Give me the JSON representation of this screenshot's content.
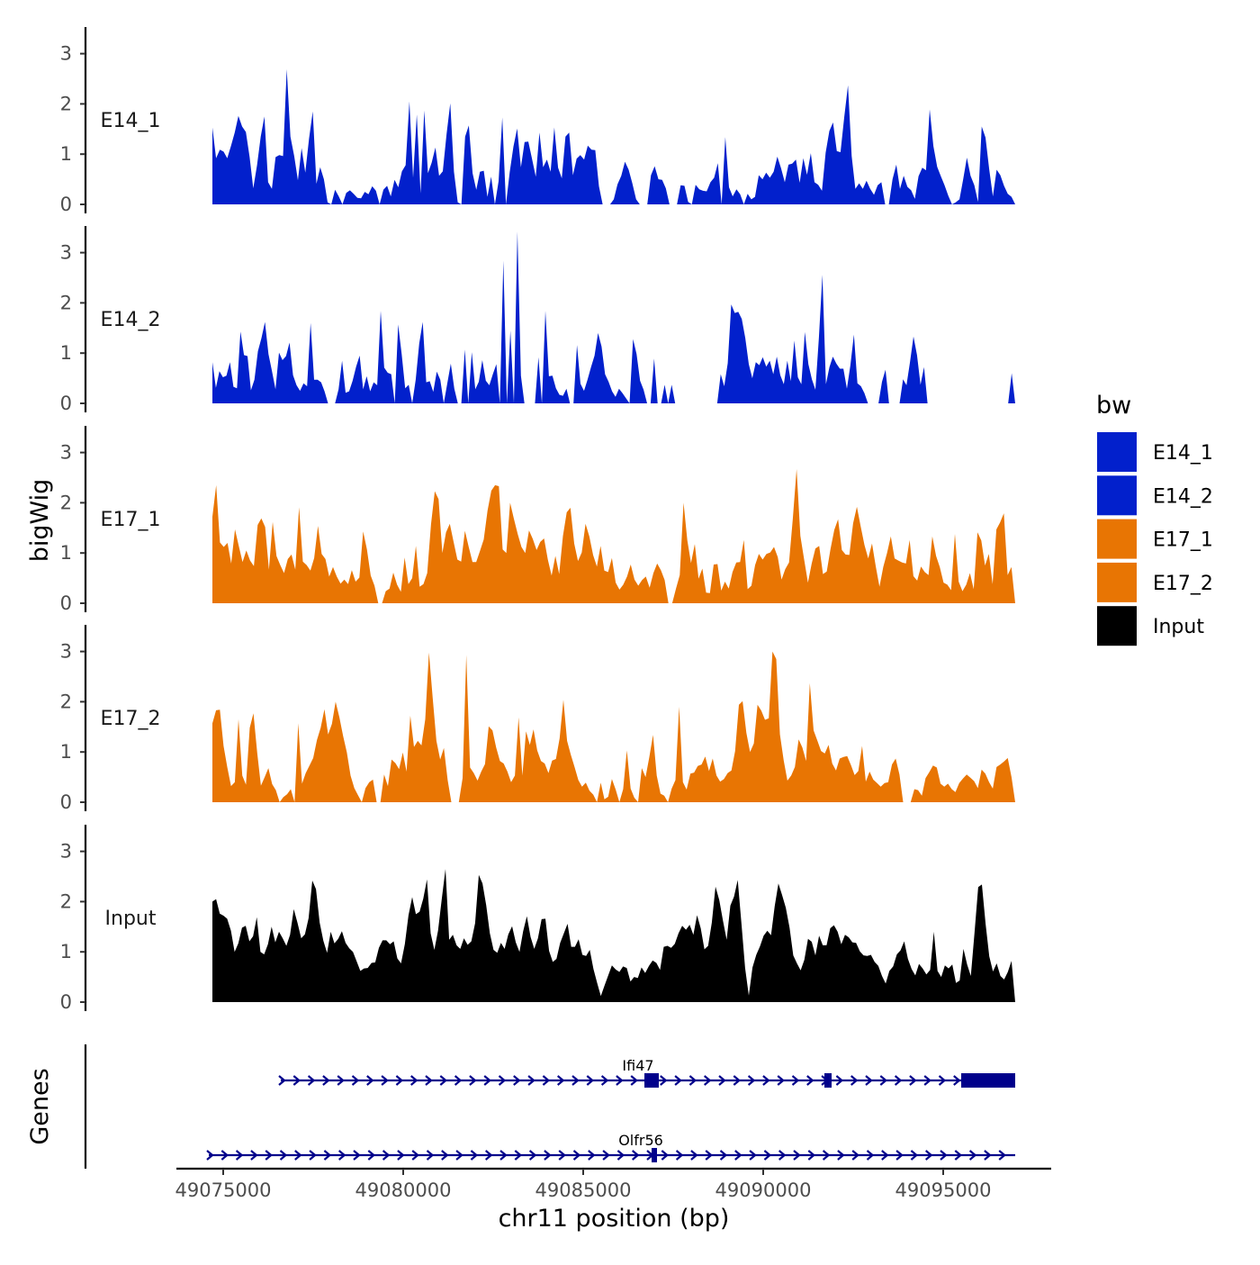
{
  "chart_data": {
    "type": "area",
    "title": "",
    "xlabel": "chr11 position (bp)",
    "ylabel": "bigWig",
    "genes_label": "Genes",
    "xlim": [
      49073700,
      49098000
    ],
    "x_ticks": [
      49075000,
      49080000,
      49085000,
      49090000,
      49095000
    ],
    "x_tick_labels": [
      "49075000",
      "49080000",
      "49085000",
      "49090000",
      "49095000"
    ],
    "ylim": [
      0,
      3.5
    ],
    "y_ticks": [
      0,
      1,
      2,
      3
    ],
    "y_tick_labels": [
      "0",
      "1",
      "2",
      "3"
    ],
    "bin_size_bp": 100,
    "series": [
      {
        "name": "E14_1",
        "color": "#0220CC",
        "x_start": 49074700,
        "x_end": 49097000,
        "values": [
          1.53,
          0.92,
          1.09,
          1.05,
          0.92,
          1.16,
          1.43,
          1.76,
          1.55,
          1.44,
          0.95,
          0.32,
          0.78,
          1.35,
          1.75,
          0.44,
          0.31,
          0.94,
          0.98,
          0.96,
          2.69,
          1.35,
          0.96,
          0.48,
          1.12,
          0.63,
          1.31,
          1.85,
          0.41,
          0.74,
          0.5,
          0.04,
          0.0,
          0.29,
          0.16,
          0.0,
          0.23,
          0.28,
          0.21,
          0.13,
          0.12,
          0.25,
          0.2,
          0.36,
          0.27,
          0.0,
          0.29,
          0.37,
          0.16,
          0.49,
          0.34,
          0.66,
          0.78,
          2.05,
          0.53,
          1.79,
          0.22,
          1.87,
          0.62,
          0.83,
          1.13,
          0.57,
          0.66,
          1.4,
          2.01,
          0.65,
          0.04,
          0.0,
          1.35,
          1.57,
          0.62,
          0.29,
          0.65,
          0.67,
          0.15,
          0.55,
          0.0,
          0.46,
          1.73,
          0.0,
          0.65,
          1.15,
          1.51,
          0.74,
          1.24,
          1.25,
          0.91,
          0.55,
          1.43,
          0.74,
          0.89,
          0.65,
          1.53,
          0.73,
          0.52,
          1.35,
          1.43,
          0.58,
          0.91,
          0.98,
          0.89,
          1.17,
          1.09,
          1.08,
          0.36,
          0.0,
          0.0,
          0.0,
          0.1,
          0.4,
          0.57,
          0.85,
          0.69,
          0.42,
          0.1,
          0.0,
          0.0,
          0.0,
          0.58,
          0.76,
          0.5,
          0.49,
          0.32,
          0.0,
          0.0,
          0.0,
          0.38,
          0.37,
          0.05,
          0.0,
          0.39,
          0.3,
          0.27,
          0.26,
          0.44,
          0.53,
          0.82,
          0.0,
          1.34,
          0.34,
          0.16,
          0.3,
          0.2,
          0.0,
          0.21,
          0.1,
          0.15,
          0.58,
          0.5,
          0.63,
          0.53,
          0.65,
          0.95,
          0.72,
          0.44,
          0.79,
          0.81,
          0.89,
          0.43,
          0.92,
          0.59,
          1.02,
          0.44,
          0.39,
          0.27,
          1.03,
          1.46,
          1.63,
          1.06,
          1.04,
          1.73,
          2.37,
          0.96,
          0.31,
          0.42,
          0.31,
          0.47,
          0.31,
          0.19,
          0.38,
          0.44,
          0.0,
          0.0,
          0.5,
          0.79,
          0.31,
          0.57,
          0.35,
          0.28,
          0.11,
          0.56,
          0.73,
          0.68,
          1.89,
          1.16,
          0.75,
          0.56,
          0.38,
          0.17,
          0.0,
          0.04,
          0.1,
          0.5,
          0.93,
          0.57,
          0.38,
          0.05,
          1.55,
          1.33,
          0.7,
          0.16,
          0.69,
          0.58,
          0.37,
          0.21,
          0.15,
          0.0
        ]
      },
      {
        "name": "E14_2",
        "color": "#0220CC",
        "x_start": 49074700,
        "x_end": 49097000,
        "values": [
          0.82,
          0.31,
          0.64,
          0.52,
          0.55,
          0.82,
          0.33,
          0.3,
          1.43,
          0.96,
          0.94,
          0.26,
          0.47,
          1.04,
          1.3,
          1.62,
          0.98,
          0.64,
          0.28,
          1.01,
          0.86,
          0.94,
          1.21,
          0.56,
          0.36,
          0.25,
          0.4,
          0.34,
          1.6,
          0.47,
          0.47,
          0.42,
          0.24,
          0.0,
          0.0,
          0.0,
          0.28,
          0.85,
          0.21,
          0.24,
          0.45,
          0.73,
          0.95,
          0.28,
          0.54,
          0.24,
          0.42,
          0.36,
          1.84,
          0.71,
          0.61,
          0.58,
          0.0,
          1.57,
          0.98,
          0.3,
          0.37,
          0.0,
          0.47,
          1.19,
          1.62,
          0.42,
          0.44,
          0.23,
          0.63,
          0.47,
          0.0,
          0.4,
          0.79,
          0.29,
          0.0,
          0.0,
          1.07,
          0.0,
          1.02,
          0.28,
          0.43,
          0.86,
          0.45,
          0.36,
          0.58,
          0.78,
          0.0,
          2.84,
          0.0,
          1.45,
          0.0,
          3.42,
          0.55,
          0.0,
          0.0,
          0.0,
          0.0,
          0.92,
          0.0,
          1.84,
          0.54,
          0.55,
          0.3,
          0.17,
          0.15,
          0.29,
          0.0,
          0.0,
          1.16,
          0.39,
          0.25,
          0.47,
          0.72,
          0.95,
          1.4,
          1.13,
          0.58,
          0.43,
          0.24,
          0.13,
          0.29,
          0.2,
          0.1,
          0.0,
          1.28,
          0.98,
          0.45,
          0.27,
          0.0,
          0.0,
          0.89,
          0.0,
          0.0,
          0.37,
          0.0,
          0.37,
          0.0,
          0.0,
          0.0,
          0.0,
          0.0,
          0.0,
          0.0,
          0.0,
          0.0,
          0.0,
          0.0,
          0.0,
          0.0,
          0.58,
          0.34,
          0.8,
          1.97,
          1.8,
          1.82,
          1.68,
          1.3,
          0.78,
          0.5,
          0.82,
          0.76,
          0.92,
          0.73,
          0.85,
          0.58,
          0.93,
          0.56,
          0.38,
          0.85,
          0.44,
          1.25,
          0.52,
          0.38,
          1.42,
          0.78,
          0.48,
          0.27,
          1.31,
          2.56,
          0.38,
          0.72,
          0.93,
          0.79,
          0.69,
          0.69,
          0.29,
          0.76,
          1.37,
          0.4,
          0.34,
          0.2,
          0.0,
          0.0,
          0.0,
          0.0,
          0.43,
          0.67,
          0.0,
          0.0,
          0.0,
          0.0,
          0.48,
          0.36,
          0.82,
          1.33,
          0.96,
          0.37,
          0.72,
          0.0,
          0.0,
          0.0,
          0.0,
          0.0,
          0.0,
          0.0,
          0.0,
          0.0,
          0.0,
          0.0,
          0.0,
          0.0,
          0.0,
          0.0,
          0.0,
          0.0,
          0.0,
          0.0,
          0.0,
          0.0,
          0.0,
          0.0,
          0.0,
          0.6,
          0.0
        ]
      },
      {
        "name": "E17_1",
        "color": "#E87503",
        "x_start": 49074700,
        "x_end": 49097000,
        "values": [
          1.72,
          2.35,
          1.21,
          1.12,
          1.2,
          0.79,
          1.47,
          1.14,
          0.82,
          1.05,
          0.85,
          0.74,
          1.56,
          1.69,
          1.52,
          0.67,
          1.62,
          0.94,
          0.76,
          0.6,
          0.88,
          0.97,
          0.67,
          1.91,
          0.83,
          0.76,
          0.65,
          0.9,
          1.54,
          0.98,
          0.88,
          0.53,
          0.72,
          0.53,
          0.39,
          0.47,
          0.38,
          0.66,
          0.43,
          0.51,
          1.43,
          1.07,
          0.55,
          0.35,
          0.0,
          0.0,
          0.24,
          0.29,
          0.61,
          0.37,
          0.23,
          0.91,
          0.38,
          0.5,
          1.14,
          0.33,
          0.38,
          0.6,
          1.57,
          2.23,
          2.07,
          1.0,
          1.41,
          1.58,
          1.22,
          0.87,
          0.83,
          1.44,
          1.12,
          0.82,
          0.82,
          1.04,
          1.27,
          1.84,
          2.24,
          2.35,
          2.33,
          1.07,
          1.0,
          2.0,
          1.68,
          1.38,
          1.12,
          1.0,
          1.45,
          1.28,
          1.06,
          1.22,
          1.29,
          0.87,
          0.55,
          0.94,
          0.58,
          1.34,
          1.81,
          1.9,
          1.19,
          0.84,
          1.01,
          1.58,
          1.33,
          0.96,
          0.73,
          1.14,
          0.65,
          0.62,
          0.9,
          0.41,
          0.27,
          0.37,
          0.53,
          0.77,
          0.47,
          0.35,
          0.46,
          0.53,
          0.31,
          0.6,
          0.79,
          0.66,
          0.46,
          0.0,
          0.0,
          0.29,
          0.56,
          2.0,
          1.25,
          0.8,
          1.18,
          0.49,
          0.69,
          0.21,
          0.2,
          0.77,
          0.78,
          0.25,
          0.43,
          0.29,
          0.62,
          0.81,
          0.82,
          1.26,
          0.28,
          0.35,
          0.76,
          0.98,
          0.87,
          0.98,
          1.01,
          1.12,
          0.92,
          0.47,
          0.68,
          0.81,
          1.68,
          2.67,
          1.34,
          0.87,
          0.41,
          0.79,
          1.09,
          1.14,
          0.58,
          0.63,
          1.08,
          1.46,
          1.67,
          1.06,
          0.97,
          0.96,
          1.59,
          1.92,
          1.53,
          1.16,
          0.89,
          1.19,
          0.73,
          0.33,
          0.72,
          1.0,
          1.33,
          0.89,
          0.85,
          0.81,
          0.79,
          1.26,
          0.54,
          0.45,
          0.73,
          0.62,
          0.56,
          1.33,
          0.94,
          0.72,
          0.41,
          0.37,
          0.26,
          1.38,
          0.43,
          0.24,
          0.37,
          0.6,
          0.28,
          1.41,
          1.25,
          0.75,
          0.98,
          0.38,
          1.47,
          1.61,
          1.79,
          0.56,
          0.72,
          0.0
        ]
      },
      {
        "name": "E17_2",
        "color": "#E87503",
        "x_start": 49074700,
        "x_end": 49097000,
        "values": [
          1.57,
          1.83,
          1.84,
          1.12,
          0.69,
          0.32,
          0.4,
          1.65,
          0.53,
          0.35,
          1.48,
          1.77,
          0.98,
          0.33,
          0.5,
          0.68,
          0.36,
          0.24,
          0.0,
          0.1,
          0.16,
          0.26,
          0.0,
          1.57,
          0.37,
          0.58,
          0.73,
          0.88,
          1.24,
          1.48,
          1.85,
          1.35,
          1.56,
          2.0,
          1.69,
          1.32,
          0.99,
          0.53,
          0.28,
          0.14,
          0.0,
          0.28,
          0.4,
          0.45,
          0.0,
          0.0,
          0.55,
          0.32,
          0.85,
          0.78,
          0.66,
          0.99,
          0.61,
          1.72,
          1.1,
          1.22,
          1.13,
          1.65,
          2.98,
          2.07,
          1.22,
          0.85,
          1.08,
          0.44,
          0.0,
          0.0,
          0.0,
          0.48,
          2.93,
          0.69,
          0.58,
          0.43,
          0.61,
          0.76,
          1.51,
          1.43,
          1.09,
          0.82,
          0.77,
          0.61,
          0.4,
          0.53,
          1.69,
          0.53,
          1.41,
          1.14,
          1.45,
          1.03,
          0.82,
          0.77,
          0.58,
          0.83,
          0.86,
          1.27,
          2.04,
          1.22,
          0.94,
          0.7,
          0.44,
          0.31,
          0.39,
          0.23,
          0.15,
          0.0,
          0.39,
          0.06,
          0.11,
          0.46,
          0.25,
          0.0,
          0.26,
          1.03,
          0.27,
          0.09,
          0.0,
          0.68,
          0.5,
          0.89,
          1.34,
          0.53,
          0.17,
          0.13,
          0.0,
          0.27,
          0.44,
          1.9,
          0.4,
          0.25,
          0.57,
          0.59,
          0.72,
          0.75,
          0.91,
          0.62,
          0.87,
          0.53,
          0.41,
          0.46,
          0.58,
          0.63,
          1.02,
          1.94,
          2.01,
          1.38,
          1.0,
          1.17,
          1.94,
          1.82,
          1.64,
          1.67,
          3.0,
          2.85,
          1.35,
          0.83,
          0.43,
          0.53,
          0.7,
          1.25,
          1.09,
          0.82,
          2.37,
          1.43,
          1.23,
          1.02,
          0.97,
          1.14,
          0.77,
          0.63,
          0.87,
          0.9,
          0.92,
          0.74,
          0.54,
          0.62,
          1.12,
          0.41,
          0.61,
          0.45,
          0.38,
          0.31,
          0.38,
          0.4,
          0.75,
          0.87,
          0.55,
          0.0,
          0.0,
          0.0,
          0.26,
          0.24,
          0.13,
          0.48,
          0.6,
          0.73,
          0.69,
          0.37,
          0.31,
          0.37,
          0.26,
          0.2,
          0.38,
          0.47,
          0.55,
          0.49,
          0.42,
          0.28,
          0.65,
          0.57,
          0.4,
          0.27,
          0.7,
          0.75,
          0.81,
          0.88,
          0.5,
          0.0
        ]
      },
      {
        "name": "Input",
        "color": "#000000",
        "x_start": 49074700,
        "x_end": 49097000,
        "values": [
          2.0,
          2.05,
          1.76,
          1.72,
          1.66,
          1.42,
          1.0,
          1.17,
          1.48,
          1.52,
          1.21,
          1.31,
          1.69,
          1.0,
          0.95,
          1.15,
          1.5,
          1.19,
          1.4,
          1.27,
          1.12,
          1.34,
          1.85,
          1.58,
          1.27,
          1.35,
          1.67,
          2.42,
          2.25,
          1.58,
          1.22,
          0.98,
          1.4,
          1.17,
          1.26,
          1.41,
          1.18,
          1.07,
          1.0,
          0.81,
          0.62,
          0.67,
          0.68,
          0.78,
          0.79,
          1.08,
          1.23,
          1.23,
          1.15,
          1.21,
          0.87,
          0.77,
          1.15,
          1.73,
          2.09,
          1.75,
          1.8,
          2.06,
          2.44,
          1.37,
          1.04,
          1.42,
          2.06,
          2.65,
          1.24,
          1.34,
          1.13,
          1.06,
          1.27,
          1.14,
          1.21,
          1.57,
          2.53,
          2.36,
          1.93,
          1.37,
          1.04,
          0.98,
          1.18,
          1.06,
          1.35,
          1.51,
          1.19,
          1.0,
          1.41,
          1.71,
          1.3,
          1.06,
          1.27,
          1.65,
          1.66,
          1.02,
          0.8,
          0.86,
          1.18,
          1.37,
          1.56,
          1.1,
          1.1,
          1.25,
          0.94,
          0.92,
          1.04,
          0.66,
          0.38,
          0.12,
          0.33,
          0.53,
          0.73,
          0.65,
          0.6,
          0.71,
          0.68,
          0.41,
          0.5,
          0.48,
          0.69,
          0.58,
          0.72,
          0.83,
          0.78,
          0.64,
          1.1,
          1.12,
          1.08,
          1.16,
          1.37,
          1.52,
          1.44,
          1.54,
          1.34,
          1.73,
          1.47,
          1.05,
          1.12,
          1.58,
          2.3,
          2.03,
          1.62,
          1.24,
          1.92,
          2.1,
          2.43,
          1.57,
          0.68,
          0.13,
          0.69,
          0.94,
          1.11,
          1.32,
          1.42,
          1.33,
          1.91,
          2.36,
          2.13,
          1.88,
          1.48,
          0.93,
          0.77,
          0.63,
          0.84,
          1.26,
          1.2,
          0.93,
          1.32,
          1.13,
          1.13,
          1.47,
          1.53,
          1.4,
          1.15,
          1.34,
          1.29,
          1.19,
          1.18,
          1.01,
          0.93,
          0.92,
          0.94,
          0.8,
          0.72,
          0.52,
          0.37,
          0.62,
          0.71,
          0.95,
          1.03,
          1.21,
          0.86,
          0.66,
          0.53,
          0.76,
          0.67,
          0.55,
          0.64,
          1.4,
          0.62,
          0.5,
          0.73,
          0.67,
          0.75,
          0.38,
          0.43,
          1.06,
          0.75,
          0.52,
          1.38,
          2.29,
          2.34,
          1.56,
          0.91,
          0.61,
          0.77,
          0.52,
          0.45,
          0.6,
          0.82,
          0.0
        ]
      }
    ],
    "legend": {
      "title": "bw",
      "entries": [
        {
          "label": "E14_1",
          "color": "#0220CC"
        },
        {
          "label": "E14_2",
          "color": "#0220CC"
        },
        {
          "label": "E17_1",
          "color": "#E87503"
        },
        {
          "label": "E17_2",
          "color": "#E87503"
        },
        {
          "label": "Input",
          "color": "#000000"
        }
      ]
    },
    "genes": [
      {
        "name": "Ifi47",
        "start": 49076600,
        "end": 49097000,
        "strand": "+",
        "color": "#00008B",
        "exons": [
          [
            49086700,
            49087100
          ],
          [
            49091700,
            49091900
          ],
          [
            49095500,
            49097000
          ]
        ]
      },
      {
        "name": "Olfr56",
        "start": 49074600,
        "end": 49097000,
        "strand": "+",
        "color": "#00008B",
        "exons": [
          [
            49086900,
            49087050
          ]
        ]
      }
    ]
  }
}
